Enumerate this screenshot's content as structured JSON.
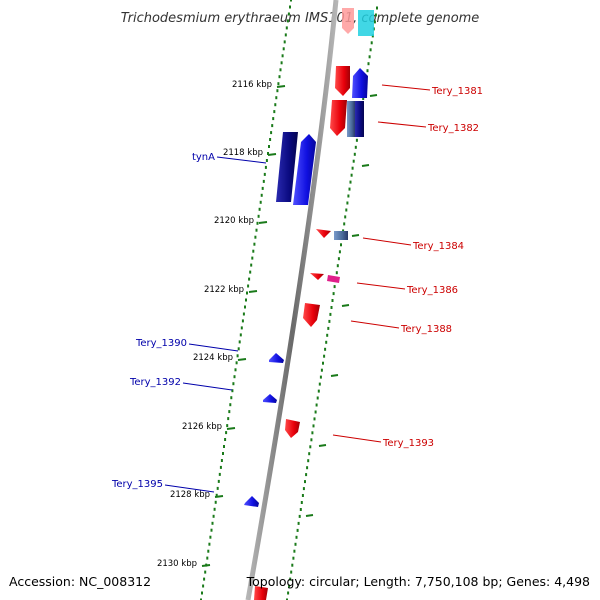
{
  "title": "Trichodesmium erythraeum IMS101, complete genome",
  "footer": {
    "accession": "Accession: NC_008312",
    "topology": "Topology: circular; Length: 7,750,108 bp; Genes: 4,498"
  },
  "ticks": [
    "2116 kbp",
    "2118 kbp",
    "2120 kbp",
    "2122 kbp",
    "2124 kbp",
    "2126 kbp",
    "2128 kbp",
    "2130 kbp"
  ],
  "labels": {
    "right": [
      "Tery_1381",
      "Tery_1382",
      "Tery_1384",
      "Tery_1386",
      "Tery_1388",
      "Tery_1393"
    ],
    "left": [
      "tynA",
      "Tery_1390",
      "Tery_1392",
      "Tery_1395"
    ]
  },
  "colors": {
    "forward_strand": "#e8000a",
    "reverse_strand": "#1010e0",
    "dark_blue": "#0a0a80",
    "steel_blue": "#4a6a9a",
    "magenta": "#e0208a",
    "cyan": "#20d0e0",
    "right_label": "#cc0000",
    "left_label": "#0000aa",
    "tick_dots": "#1a7a1a",
    "backbone": "#888888"
  }
}
